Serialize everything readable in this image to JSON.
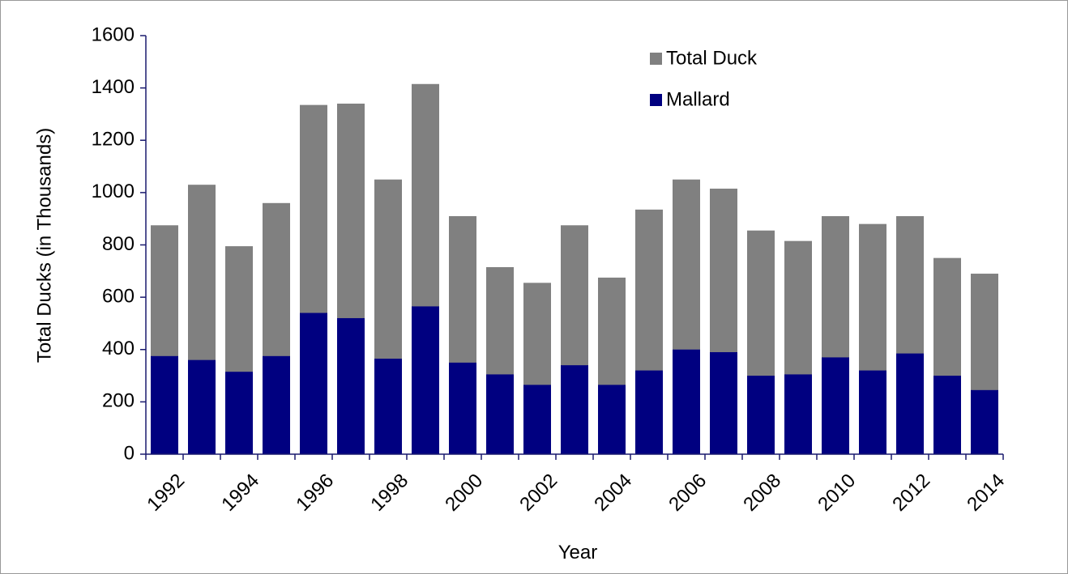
{
  "chart_data": {
    "type": "bar",
    "barmode": "overlay",
    "x_label": "Year",
    "y_label": "Total Ducks (in Thousands)",
    "categories": [
      "1992",
      null,
      "1994",
      null,
      "1996",
      null,
      "1998",
      null,
      "2000",
      null,
      "2002",
      null,
      "2004",
      null,
      "2006",
      null,
      "2008",
      null,
      "2010",
      null,
      "2012",
      null,
      "2014"
    ],
    "series": [
      {
        "name": "Total Duck",
        "color": "#808080",
        "values": [
          875,
          1030,
          795,
          960,
          1335,
          1340,
          1050,
          1415,
          910,
          715,
          655,
          875,
          675,
          935,
          1050,
          1015,
          855,
          815,
          910,
          880,
          910,
          750,
          690
        ]
      },
      {
        "name": "Mallard",
        "color": "#000080",
        "values": [
          375,
          360,
          315,
          375,
          540,
          520,
          365,
          565,
          350,
          305,
          265,
          340,
          265,
          320,
          400,
          390,
          300,
          305,
          370,
          320,
          385,
          300,
          245
        ]
      }
    ],
    "ylim": [
      0,
      1600
    ],
    "yticks": [
      0,
      200,
      400,
      600,
      800,
      1000,
      1200,
      1400,
      1600
    ]
  }
}
